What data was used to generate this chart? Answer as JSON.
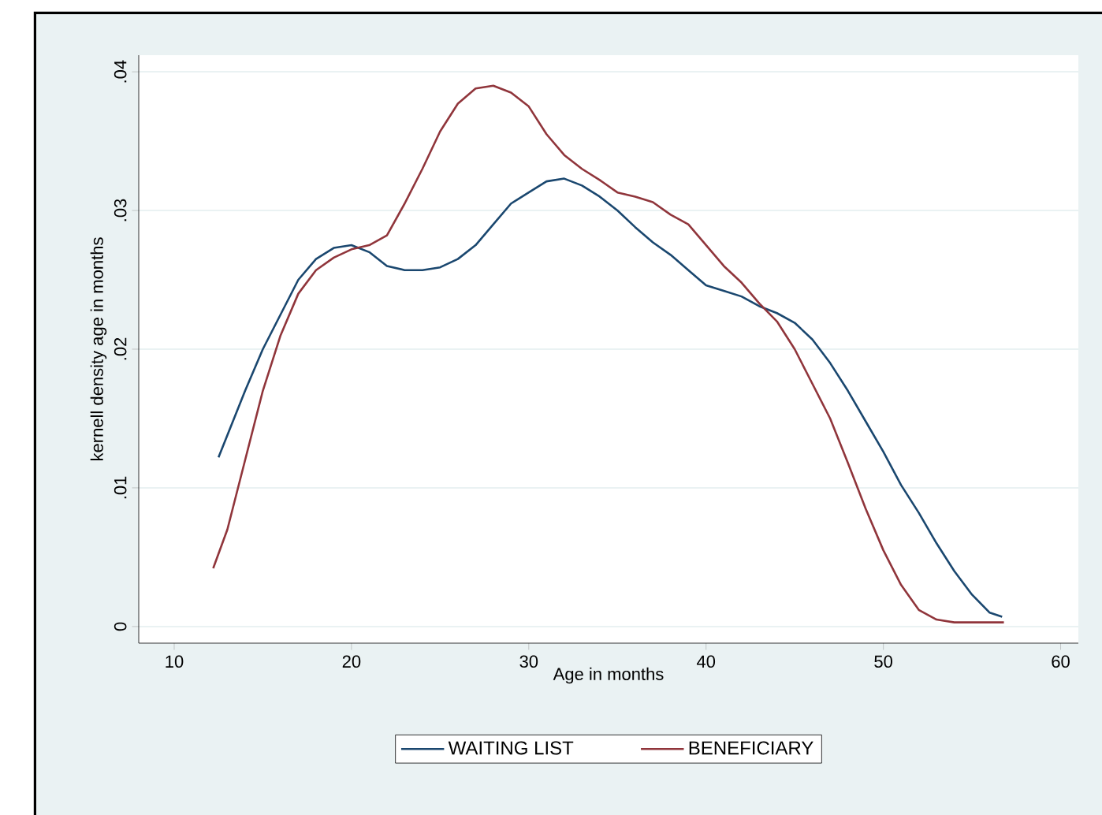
{
  "chart_data": {
    "type": "line",
    "xlabel": "Age in months",
    "ylabel": "kernell density age in months",
    "xlim": [
      8,
      61
    ],
    "ylim": [
      -0.0012,
      0.0412
    ],
    "xticks": [
      10,
      20,
      30,
      40,
      50,
      60
    ],
    "yticks": [
      {
        "value": 0,
        "label": "0"
      },
      {
        "value": 0.01,
        "label": ".01"
      },
      {
        "value": 0.02,
        "label": ".02"
      },
      {
        "value": 0.03,
        "label": ".03"
      },
      {
        "value": 0.04,
        "label": ".04"
      }
    ],
    "grid": "y",
    "legend": "bottom",
    "line_style": "solid",
    "marker": "none",
    "series": [
      {
        "name": "WAITING LIST",
        "color": "#1a476f",
        "x": [
          12.5,
          14,
          15,
          16,
          17,
          18,
          19,
          20,
          21,
          22,
          23,
          24,
          25,
          26,
          27,
          28,
          29,
          30,
          31,
          32,
          33,
          34,
          35,
          36,
          37,
          38,
          39,
          40,
          41,
          42,
          43,
          44,
          45,
          46,
          47,
          48,
          49,
          50,
          51,
          52,
          53,
          54,
          55,
          56,
          56.7
        ],
        "values": [
          0.0122,
          0.017,
          0.02,
          0.0225,
          0.025,
          0.0265,
          0.0273,
          0.0275,
          0.027,
          0.026,
          0.0257,
          0.0257,
          0.0259,
          0.0265,
          0.0275,
          0.029,
          0.0305,
          0.0313,
          0.0321,
          0.0323,
          0.0318,
          0.031,
          0.03,
          0.0288,
          0.0277,
          0.0268,
          0.0257,
          0.0246,
          0.0242,
          0.0238,
          0.0231,
          0.0226,
          0.0219,
          0.0207,
          0.019,
          0.017,
          0.0148,
          0.0126,
          0.0102,
          0.0082,
          0.006,
          0.004,
          0.0023,
          0.001,
          0.0007
        ]
      },
      {
        "name": "BENEFICIARY",
        "color": "#90353b",
        "x": [
          12.2,
          13,
          14,
          15,
          16,
          17,
          18,
          19,
          20,
          21,
          22,
          23,
          24,
          25,
          26,
          27,
          28,
          29,
          30,
          31,
          32,
          33,
          34,
          35,
          36,
          37,
          38,
          39,
          40,
          41,
          42,
          43,
          44,
          45,
          46,
          47,
          48,
          49,
          50,
          51,
          52,
          53,
          54,
          55,
          56.8
        ],
        "values": [
          0.0042,
          0.007,
          0.012,
          0.017,
          0.021,
          0.024,
          0.0257,
          0.0266,
          0.0272,
          0.0275,
          0.0282,
          0.0305,
          0.033,
          0.0357,
          0.0377,
          0.0388,
          0.039,
          0.0385,
          0.0375,
          0.0355,
          0.034,
          0.033,
          0.0322,
          0.0313,
          0.031,
          0.0306,
          0.0297,
          0.029,
          0.0275,
          0.026,
          0.0248,
          0.0233,
          0.022,
          0.02,
          0.0175,
          0.015,
          0.0118,
          0.0085,
          0.0055,
          0.003,
          0.0012,
          0.0005,
          0.0003,
          0.0003,
          0.0003
        ]
      }
    ]
  }
}
